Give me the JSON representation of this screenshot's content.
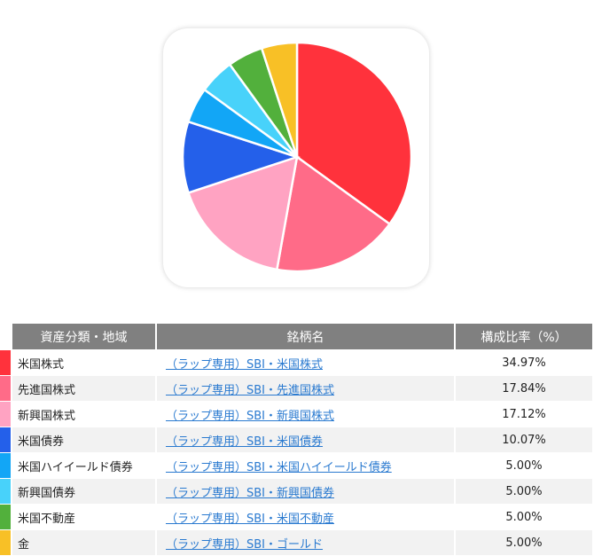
{
  "chart_data": {
    "type": "pie",
    "categories": [
      "米国株式",
      "先進国株式",
      "新興国株式",
      "米国債券",
      "米国ハイイールド債券",
      "新興国債券",
      "米国不動産",
      "金"
    ],
    "values": [
      34.97,
      17.84,
      17.12,
      10.07,
      5.0,
      5.0,
      5.0,
      5.0
    ],
    "colors": [
      "#ff323c",
      "#ff6b88",
      "#ffa3c2",
      "#2460ea",
      "#12a6f6",
      "#48d2fa",
      "#52b03c",
      "#f8c026"
    ]
  },
  "table": {
    "headers": [
      "資産分類・地域",
      "銘柄名",
      "構成比率（%）"
    ],
    "rows": [
      {
        "category": "米国株式",
        "fund": "（ラップ専用）SBI・米国株式",
        "pct": "34.97%"
      },
      {
        "category": "先進国株式",
        "fund": "（ラップ専用）SBI・先進国株式",
        "pct": "17.84%"
      },
      {
        "category": "新興国株式",
        "fund": "（ラップ専用）SBI・新興国株式",
        "pct": "17.12%"
      },
      {
        "category": "米国債券",
        "fund": "（ラップ専用）SBI・米国債券",
        "pct": "10.07%"
      },
      {
        "category": "米国ハイイールド債券",
        "fund": "（ラップ専用）SBI・米国ハイイールド債券",
        "pct": "5.00%"
      },
      {
        "category": "新興国債券",
        "fund": "（ラップ専用）SBI・新興国債券",
        "pct": "5.00%"
      },
      {
        "category": "米国不動産",
        "fund": "（ラップ専用）SBI・米国不動産",
        "pct": "5.00%"
      },
      {
        "category": "金",
        "fund": "（ラップ専用）SBI・ゴールド",
        "pct": "5.00%"
      }
    ]
  }
}
